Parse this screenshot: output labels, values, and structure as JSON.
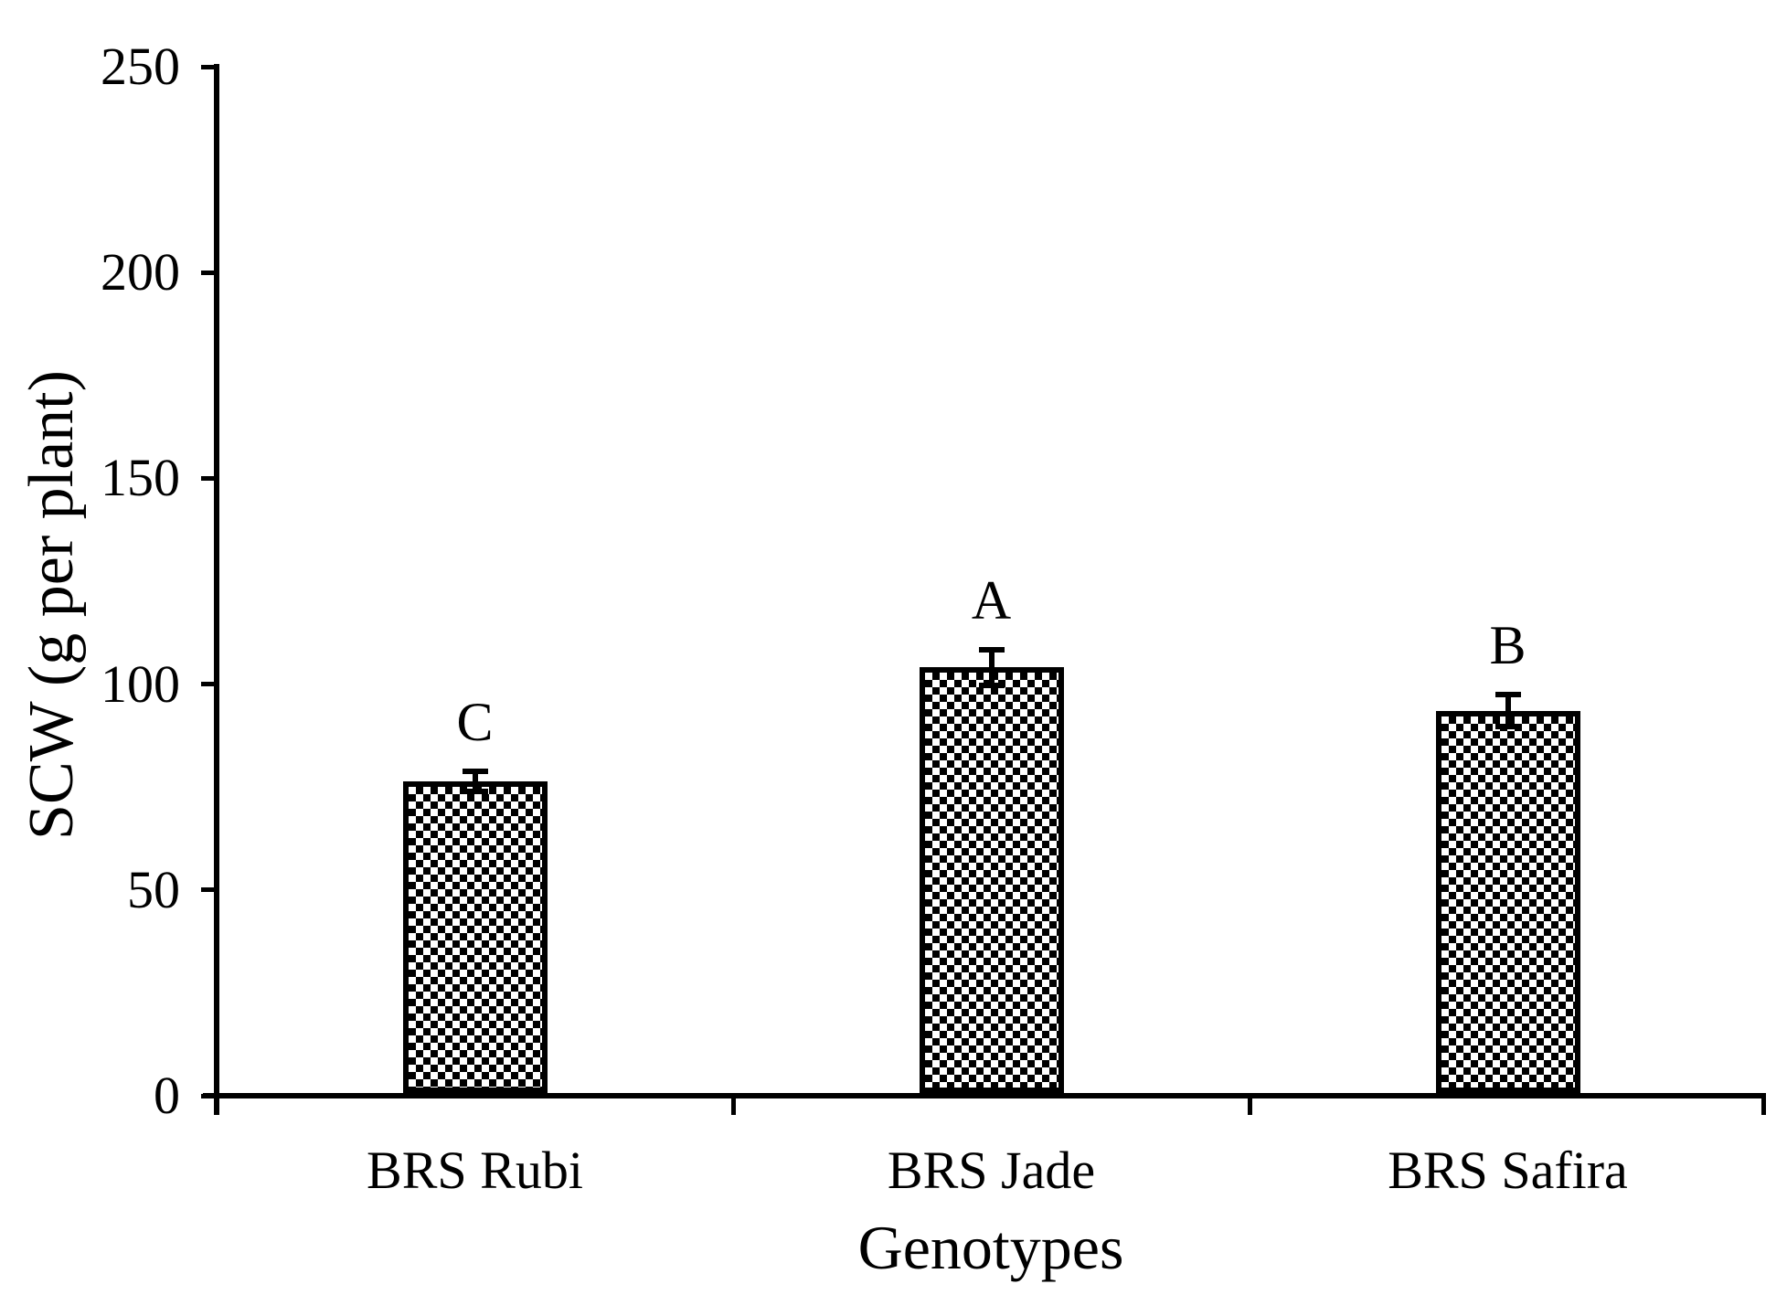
{
  "figure": {
    "background_color": "#ffffff",
    "foreground_color": "#000000"
  },
  "chart_data": {
    "type": "bar",
    "title": "",
    "xlabel": "Genotypes",
    "ylabel": "SCW (g per plant)",
    "categories": [
      "BRS Rubi",
      "BRS Jade",
      "BRS Safira"
    ],
    "values": [
      76.4,
      104.1,
      93.5
    ],
    "error_bars": [
      2.4,
      4.3,
      3.9
    ],
    "significance_letters": [
      "C",
      "A",
      "B"
    ],
    "ylim": [
      0,
      250
    ],
    "ytick_step": 50,
    "yticks": [
      "0",
      "50",
      "100",
      "150",
      "200",
      "250"
    ],
    "grid": false,
    "legend_position": "none",
    "bar_fill_pattern": "black-white-checkerboard",
    "bar_border_color": "#000000",
    "error_bar_style": "caps-top-and-bottom"
  }
}
